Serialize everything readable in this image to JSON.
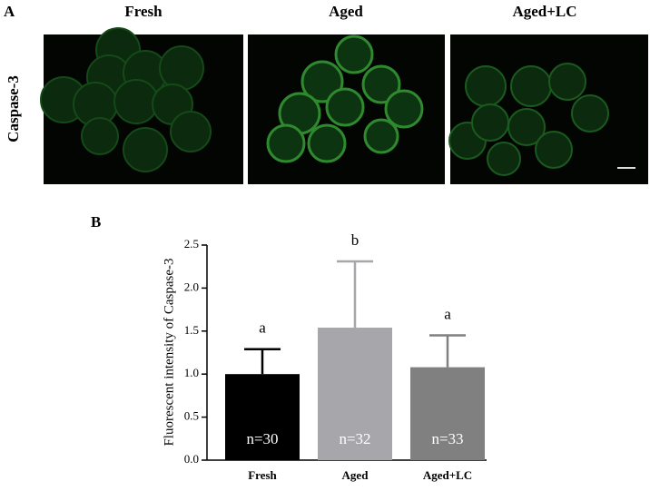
{
  "panel_a": {
    "label": "A",
    "columns": [
      "Fresh",
      "Aged",
      "Aged+LC"
    ],
    "row_label": "Caspase-3"
  },
  "chart_data": {
    "type": "bar",
    "panel_label": "B",
    "y_label": "Fluorescent intensity of Caspase-3",
    "categories": [
      "Fresh",
      "Aged",
      "Aged+LC"
    ],
    "values": [
      1.0,
      1.54,
      1.08
    ],
    "errors": [
      0.29,
      0.77,
      0.37
    ],
    "colors": [
      "#000000",
      "#a7a7ab",
      "#808080"
    ],
    "annotations": [
      "a",
      "b",
      "a"
    ],
    "bar_labels": [
      "n=30",
      "n=32",
      "n=33"
    ],
    "ylim": [
      0,
      2.5
    ],
    "yticks": [
      {
        "value": 0,
        "label": "0.0"
      },
      0.5,
      {
        "value": 1,
        "label": "1.0"
      },
      1.5,
      {
        "value": 2,
        "label": "2.0"
      },
      2.5
    ]
  }
}
